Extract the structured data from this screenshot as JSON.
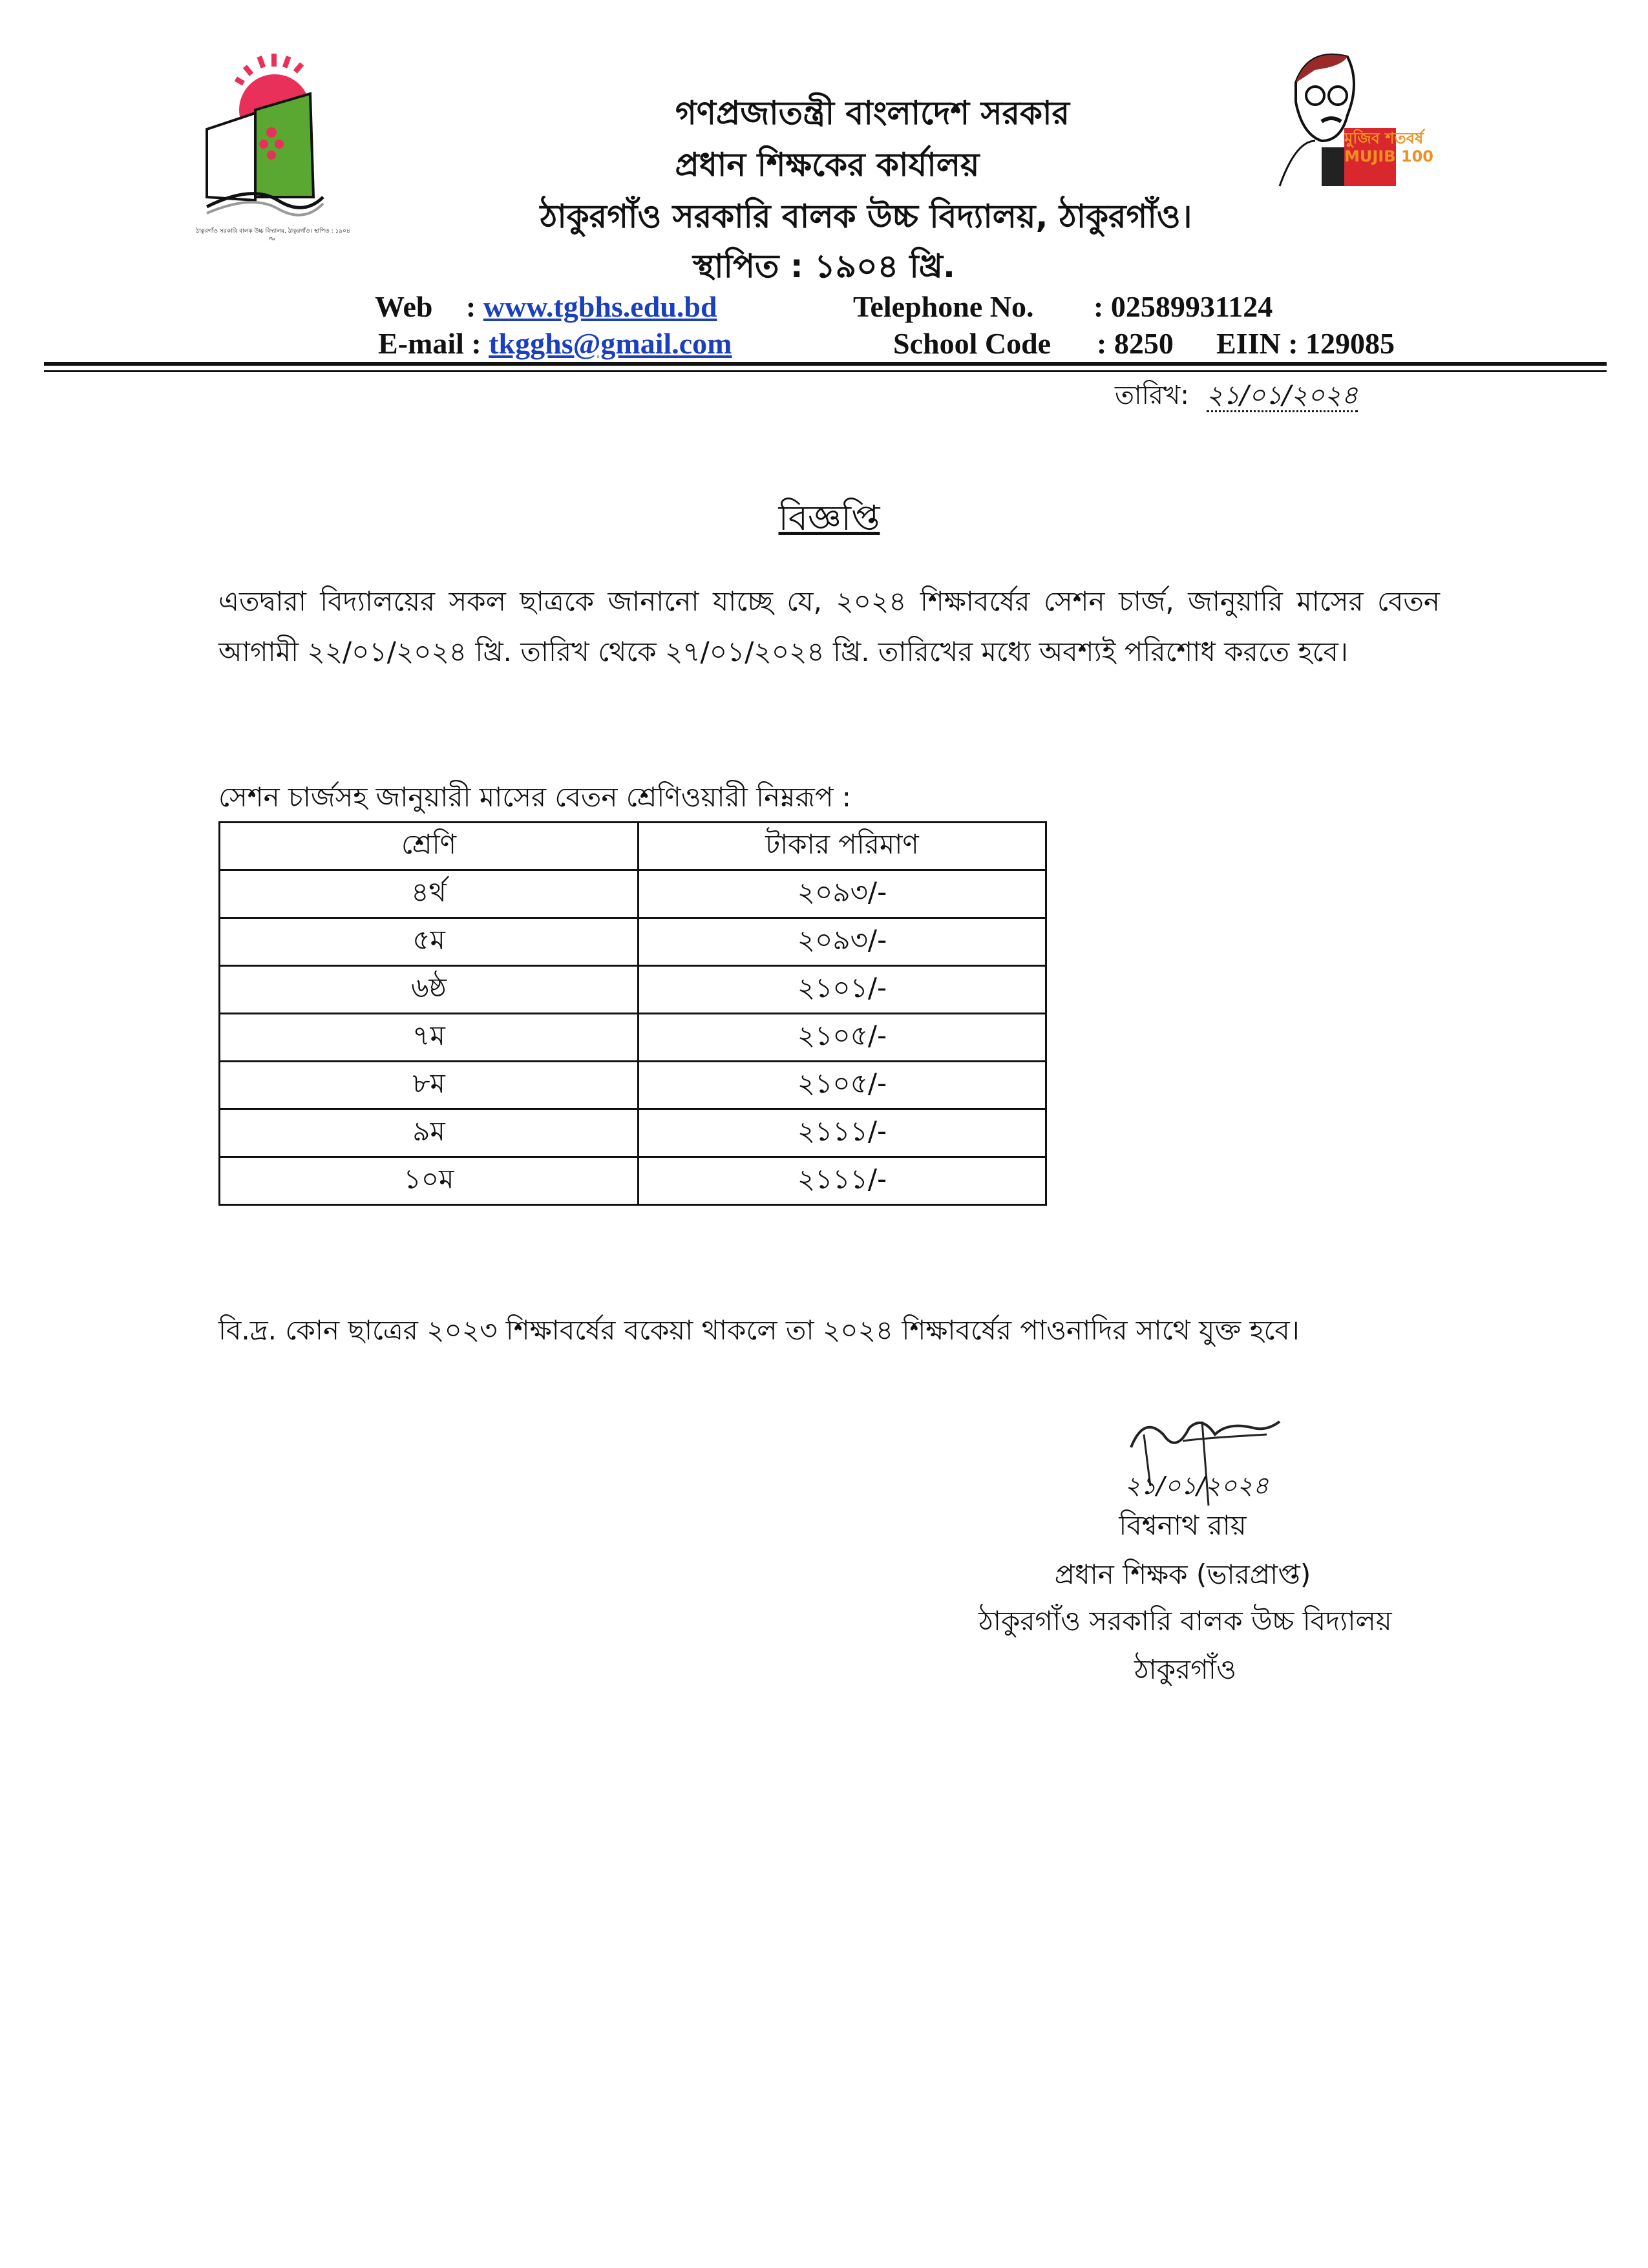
{
  "header": {
    "line1": "গণপ্রজাতন্ত্রী বাংলাদেশ সরকার",
    "line2": "প্রধান শিক্ষকের কার্যালয়",
    "line3": "ঠাকুরগাঁও সরকারি বালক উচ্চ বিদ্যালয়, ঠাকুরগাঁও।",
    "line4": "স্থাপিত : ১৯০৪ খ্রি.",
    "left_logo_caption": "ঠাকুরগাঁও সরকারি বালক উচ্চ বিদ্যালয়, ঠাকুরগাঁও। স্থাপিত : ১৯০৪ খ্রি.",
    "right_logo_text": "মুজিব শতবর্ষ MUJIB 100"
  },
  "contact": {
    "web_label": "Web",
    "web_value": "www.tgbhs.edu.bd",
    "email_label": "E-mail :",
    "email_value": "tkgghs@gmail.com",
    "telephone_label": "Telephone No.",
    "telephone_value": ": 02589931124",
    "school_code_label": "School Code",
    "school_code_value": ": 8250",
    "eiin": "EIIN : 129085"
  },
  "date": {
    "label": "তারিখ:",
    "value": "২১/০১/২০২৪"
  },
  "notice": {
    "title": "বিজ্ঞপ্তি",
    "paragraph": "এতদ্বারা বিদ্যালয়ের সকল ছাত্রকে জানানো যাচ্ছে যে, ২০২৪ শিক্ষাবর্ষের সেশন চার্জ, জানুয়ারি মাসের বেতন আগামী ২২/০১/২০২৪ খ্রি. তারিখ থেকে ২৭/০১/২০২৪ খ্রি. তারিখের মধ্যে অবশ্যই পরিশোধ করতে হবে।",
    "table_caption": "সেশন চার্জসহ জানুয়ারী মাসের বেতন শ্রেণিওয়ারী নিম্নরূপ :",
    "table": {
      "headers": [
        "শ্রেণি",
        "টাকার পরিমাণ"
      ],
      "rows": [
        [
          "৪র্থ",
          "২০৯৩/-"
        ],
        [
          "৫ম",
          "২০৯৩/-"
        ],
        [
          "৬ষ্ঠ",
          "২১০১/-"
        ],
        [
          "৭ম",
          "২১০৫/-"
        ],
        [
          "৮ম",
          "২১০৫/-"
        ],
        [
          "৯ম",
          "২১১১/-"
        ],
        [
          "১০ম",
          "২১১১/-"
        ]
      ]
    },
    "footnote": "বি.দ্র. কোন ছাত্রের ২০২৩ শিক্ষাবর্ষের বকেয়া থাকলে তা ২০২৪ শিক্ষাবর্ষের পাওনাদির সাথে যুক্ত হবে।"
  },
  "signature": {
    "handwritten_date": "২১/০১/২০২৪",
    "name": "বিশ্বনাথ রায়",
    "designation": "প্রধান শিক্ষক (ভারপ্রাপ্ত)",
    "school": "ঠাকুরগাঁও সরকারি বালক উচ্চ বিদ্যালয়",
    "town": "ঠাকুরগাঁও"
  },
  "colors": {
    "link": "#1a3fbf",
    "logo_red": "#e8305a",
    "logo_green": "#5aa832",
    "mujib_red": "#d8282e",
    "mujib_orange": "#f09020"
  }
}
